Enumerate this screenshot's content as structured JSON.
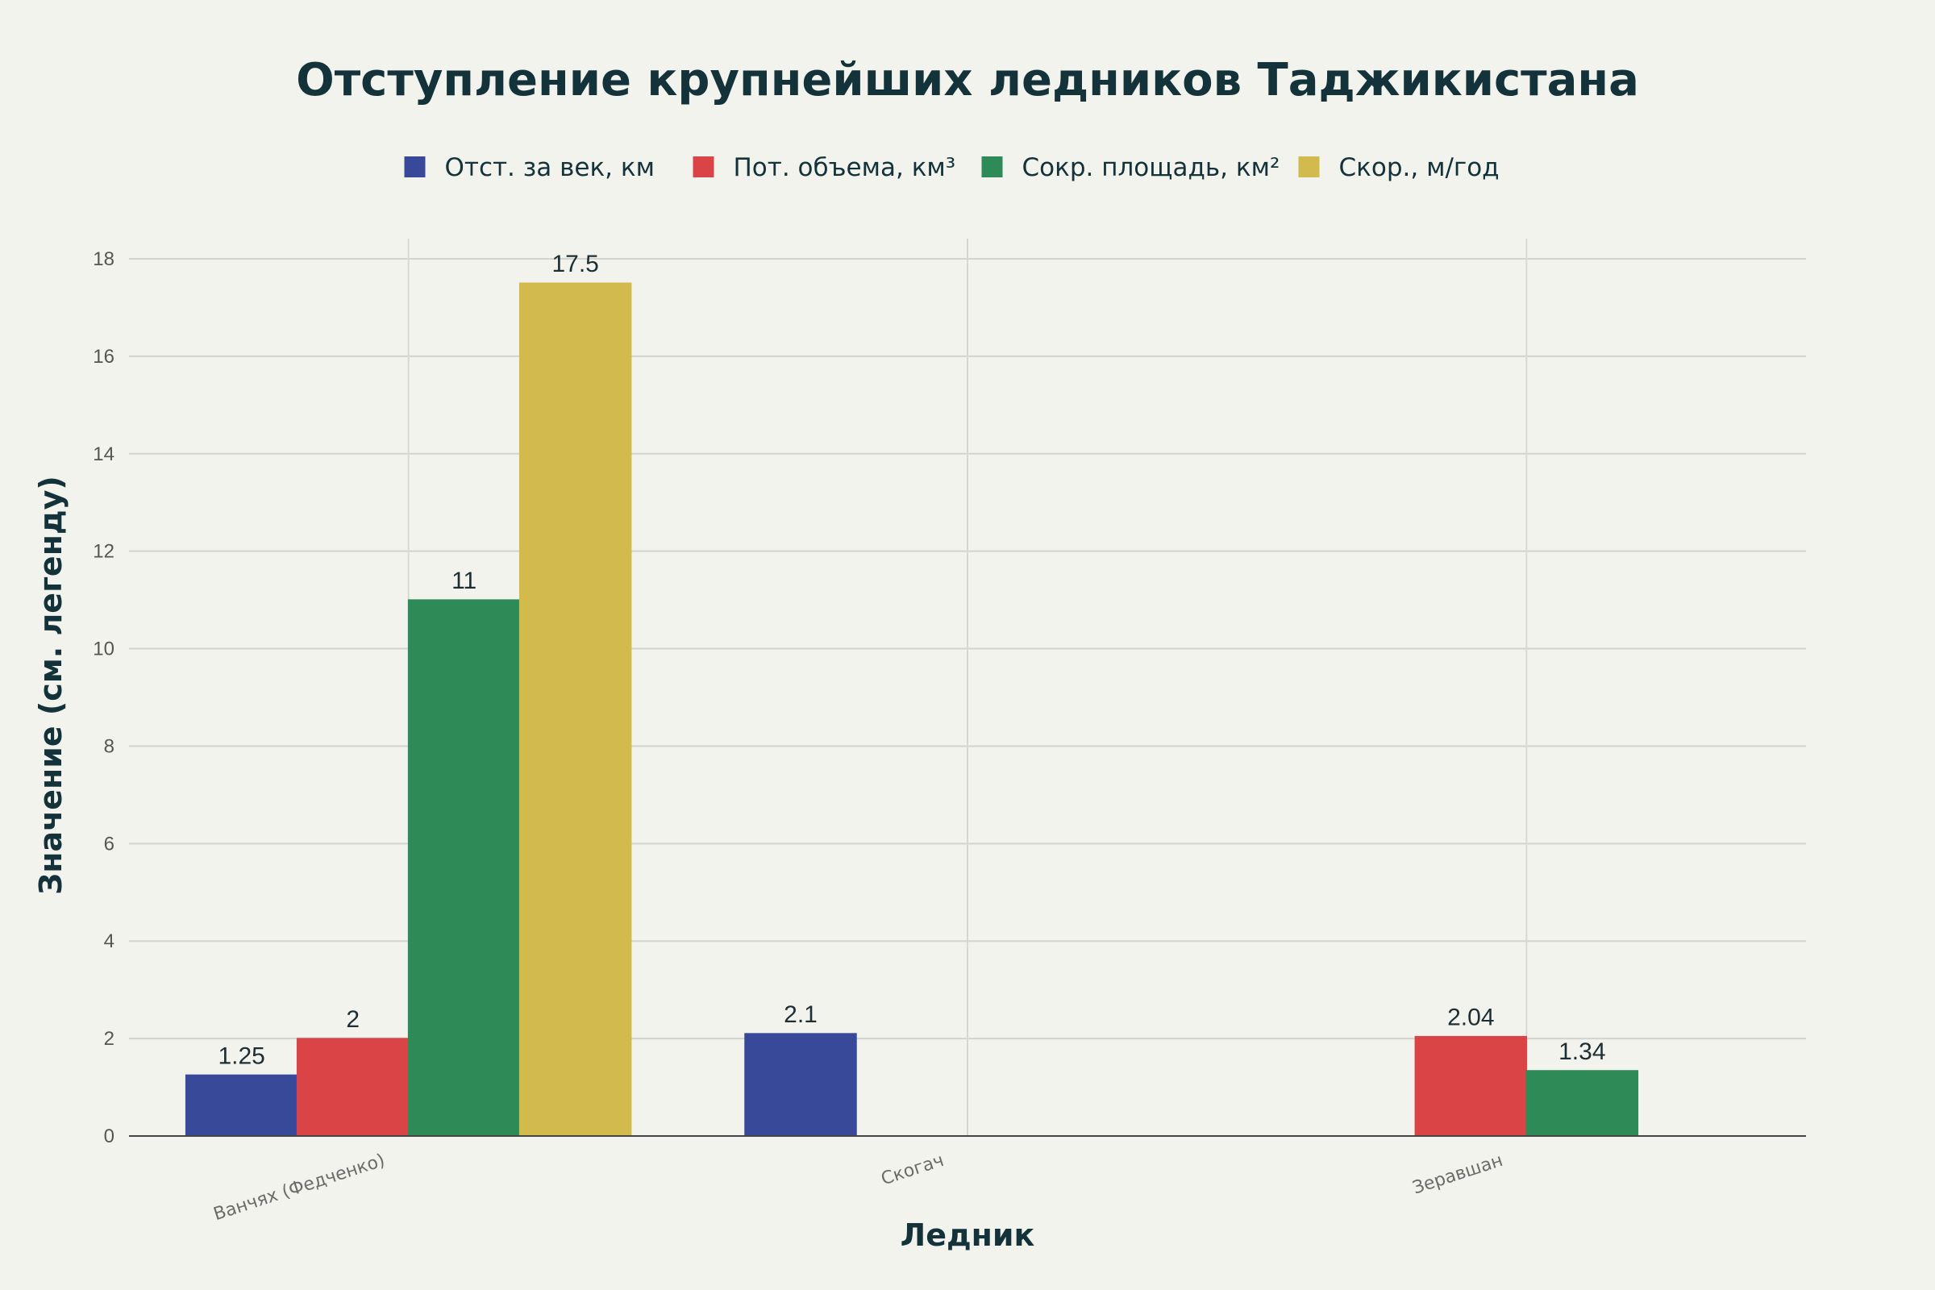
{
  "chart_data": {
    "type": "bar",
    "title": "Отступление крупнейших ледников Таджикистана",
    "xlabel": "Ледник",
    "ylabel": "Значение (см. легенду)",
    "categories": [
      "Ванчях (Федченко)",
      "Скогач",
      "Зеравшан"
    ],
    "series": [
      {
        "name": "Отст. за век, км",
        "color": "#38499a",
        "values": [
          1.25,
          2.1,
          null
        ]
      },
      {
        "name": "Пот. объема, км³",
        "color": "#da4446",
        "values": [
          2,
          null,
          2.04
        ]
      },
      {
        "name": "Сокр. площадь, км²",
        "color": "#2e8a57",
        "values": [
          11,
          null,
          1.34
        ]
      },
      {
        "name": "Скор., м/год",
        "color": "#d3ba4c",
        "values": [
          17.5,
          null,
          null
        ]
      }
    ],
    "ylim": [
      0,
      18
    ],
    "yticks": [
      0,
      2,
      4,
      6,
      8,
      10,
      12,
      14,
      16,
      18
    ],
    "grid": true,
    "legend_position": "top-center"
  }
}
